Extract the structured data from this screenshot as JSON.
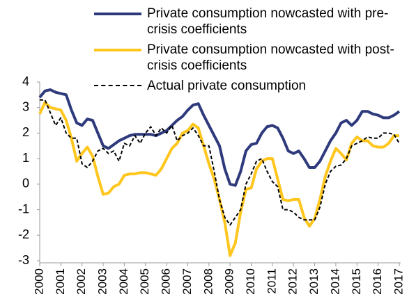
{
  "chart_data": {
    "type": "line",
    "x": [
      2000,
      2000.25,
      2000.5,
      2000.75,
      2001,
      2001.25,
      2001.5,
      2001.75,
      2002,
      2002.25,
      2002.5,
      2002.75,
      2003,
      2003.25,
      2003.5,
      2003.75,
      2004,
      2004.25,
      2004.5,
      2004.75,
      2005,
      2005.25,
      2005.5,
      2005.75,
      2006,
      2006.25,
      2006.5,
      2006.75,
      2007,
      2007.25,
      2007.5,
      2007.75,
      2008,
      2008.25,
      2008.5,
      2008.75,
      2009,
      2009.25,
      2009.5,
      2009.75,
      2010,
      2010.25,
      2010.5,
      2010.75,
      2011,
      2011.25,
      2011.5,
      2011.75,
      2012,
      2012.25,
      2012.5,
      2012.75,
      2013,
      2013.25,
      2013.5,
      2013.75,
      2014,
      2014.25,
      2014.5,
      2014.75,
      2015,
      2015.25,
      2015.5,
      2015.75,
      2016,
      2016.25,
      2016.5,
      2016.75,
      2017
    ],
    "series": [
      {
        "name": "Private consumption nowcasted with pre-crisis coefficients",
        "color": "#2e3a7c",
        "dashed": false,
        "values": [
          3.4,
          3.65,
          3.7,
          3.6,
          3.55,
          3.5,
          2.9,
          2.4,
          2.3,
          2.55,
          2.5,
          2.0,
          1.5,
          1.4,
          1.55,
          1.7,
          1.8,
          1.9,
          1.95,
          1.95,
          1.95,
          1.95,
          1.9,
          2.0,
          2.1,
          2.3,
          2.5,
          2.65,
          2.9,
          3.1,
          3.15,
          2.7,
          2.3,
          1.9,
          1.5,
          0.6,
          0.0,
          -0.05,
          0.5,
          1.3,
          1.55,
          1.6,
          2.0,
          2.25,
          2.3,
          2.2,
          1.8,
          1.3,
          1.2,
          1.3,
          1.0,
          0.65,
          0.65,
          0.9,
          1.3,
          1.7,
          2.0,
          2.4,
          2.5,
          2.3,
          2.5,
          2.85,
          2.85,
          2.75,
          2.7,
          2.6,
          2.6,
          2.7,
          2.85
        ]
      },
      {
        "name": "Private consumption nowcasted with post-crisis coefficients",
        "color": "#ffc61e",
        "dashed": false,
        "values": [
          2.75,
          3.2,
          3.0,
          2.95,
          2.9,
          2.5,
          1.8,
          0.9,
          1.2,
          1.45,
          1.1,
          0.3,
          -0.4,
          -0.35,
          -0.1,
          0.0,
          0.35,
          0.4,
          0.4,
          0.45,
          0.45,
          0.4,
          0.35,
          0.6,
          1.0,
          1.4,
          1.6,
          2.0,
          2.1,
          2.35,
          2.2,
          1.5,
          0.8,
          0.2,
          -0.6,
          -1.5,
          -2.8,
          -2.3,
          -1.1,
          -0.2,
          -0.15,
          0.6,
          0.9,
          1.0,
          1.0,
          0.2,
          -0.6,
          -0.65,
          -0.6,
          -0.6,
          -1.3,
          -1.65,
          -1.35,
          -0.6,
          0.3,
          0.9,
          1.4,
          1.2,
          0.95,
          1.6,
          1.85,
          1.7,
          1.7,
          1.5,
          1.45,
          1.45,
          1.6,
          1.9,
          1.9
        ]
      },
      {
        "name": "Actual private consumption",
        "color": "#000000",
        "dashed": true,
        "values": [
          3.3,
          3.3,
          2.8,
          2.3,
          2.6,
          2.0,
          1.8,
          1.8,
          0.8,
          0.65,
          0.9,
          1.3,
          1.4,
          1.2,
          1.3,
          0.9,
          1.6,
          1.5,
          1.9,
          1.6,
          2.0,
          2.25,
          1.9,
          2.2,
          2.0,
          2.3,
          1.7,
          1.9,
          2.0,
          2.2,
          1.9,
          1.5,
          1.5,
          0.5,
          -0.6,
          -1.3,
          -1.6,
          -1.3,
          -1.0,
          0.0,
          0.4,
          0.9,
          1.0,
          0.5,
          0.1,
          -0.1,
          -1.0,
          -1.0,
          -1.1,
          -1.3,
          -1.4,
          -1.4,
          -1.4,
          -0.9,
          0.0,
          0.5,
          0.7,
          0.75,
          1.0,
          1.5,
          1.6,
          1.7,
          1.85,
          1.8,
          1.8,
          2.0,
          2.0,
          1.95,
          1.6
        ]
      }
    ],
    "xlim": [
      2000,
      2017
    ],
    "xticks": [
      2000,
      2001,
      2002,
      2003,
      2004,
      2005,
      2006,
      2007,
      2008,
      2009,
      2010,
      2011,
      2012,
      2013,
      2014,
      2015,
      2016,
      2017
    ],
    "ylim": [
      -3,
      4
    ],
    "yticks": [
      -3,
      -2,
      -1,
      0,
      1,
      2,
      3,
      4
    ],
    "grid": false,
    "legend": "top"
  }
}
